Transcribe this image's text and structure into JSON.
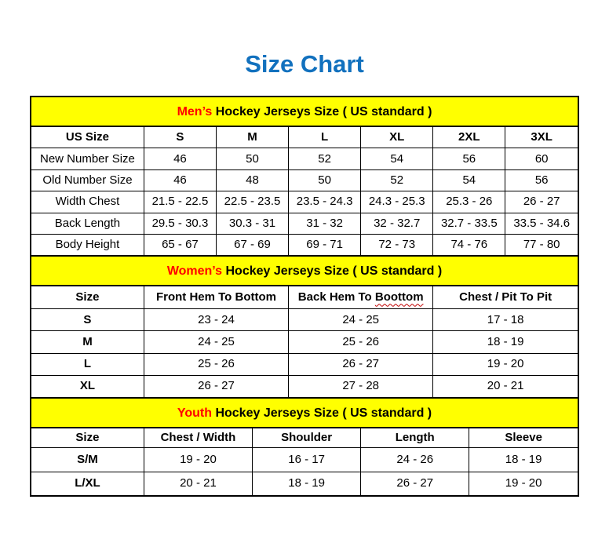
{
  "page": {
    "title": "Size Chart"
  },
  "colors": {
    "title_blue": "#1271BE",
    "banner_yellow": "#FFFF00",
    "banner_highlight_red": "#FF0000",
    "squiggle_red": "#C00000",
    "border_black": "#000000",
    "background": "#FFFFFF"
  },
  "sections": [
    {
      "name": "mens",
      "banner": {
        "highlight": "Men’s",
        "text": " Hockey Jerseys Size ( US standard )"
      },
      "columns": [
        "US Size",
        "S",
        "M",
        "L",
        "XL",
        "2XL",
        "3XL"
      ],
      "rows": [
        {
          "label": "New Number Size",
          "values": [
            "46",
            "50",
            "52",
            "54",
            "56",
            "60"
          ]
        },
        {
          "label": "Old Number Size",
          "values": [
            "46",
            "48",
            "50",
            "52",
            "54",
            "56"
          ]
        },
        {
          "label": "Width Chest",
          "values": [
            "21.5 - 22.5",
            "22.5 - 23.5",
            "23.5 - 24.3",
            "24.3 - 25.3",
            "25.3 - 26",
            "26 - 27"
          ]
        },
        {
          "label": "Back Length",
          "values": [
            "29.5 - 30.3",
            "30.3 - 31",
            "31 - 32",
            "32 - 32.7",
            "32.7 - 33.5",
            "33.5 - 34.6"
          ]
        },
        {
          "label": "Body Height",
          "values": [
            "65 - 67",
            "67 - 69",
            "69 - 71",
            "72 - 73",
            "74 - 76",
            "77 - 80"
          ]
        }
      ]
    },
    {
      "name": "womens",
      "banner": {
        "highlight": "Women’s",
        "text": " Hockey Jerseys Size ( US standard )"
      },
      "columns": [
        "Size",
        "Front Hem To Bottom",
        "Back Hem To ",
        "Chest / Pit To Pit"
      ],
      "misspelled": "Boottom",
      "rows": [
        {
          "label": "S",
          "values": [
            "23 - 24",
            "24 - 25",
            "17 - 18"
          ]
        },
        {
          "label": "M",
          "values": [
            "24 - 25",
            "25 - 26",
            "18 - 19"
          ]
        },
        {
          "label": "L",
          "values": [
            "25 - 26",
            "26 - 27",
            "19 - 20"
          ]
        },
        {
          "label": "XL",
          "values": [
            "26 - 27",
            "27 - 28",
            "20 - 21"
          ]
        }
      ]
    },
    {
      "name": "youth",
      "banner": {
        "highlight": "Youth",
        "text": " Hockey Jerseys Size ( US standard )"
      },
      "columns": [
        "Size",
        "Chest / Width",
        "Shoulder",
        "Length",
        "Sleeve"
      ],
      "rows": [
        {
          "label": "S/M",
          "values": [
            "19 - 20",
            "16 - 17",
            "24 - 26",
            "18 - 19"
          ]
        },
        {
          "label": "L/XL",
          "values": [
            "20 - 21",
            "18 - 19",
            "26 - 27",
            "19 - 20"
          ]
        }
      ]
    }
  ]
}
